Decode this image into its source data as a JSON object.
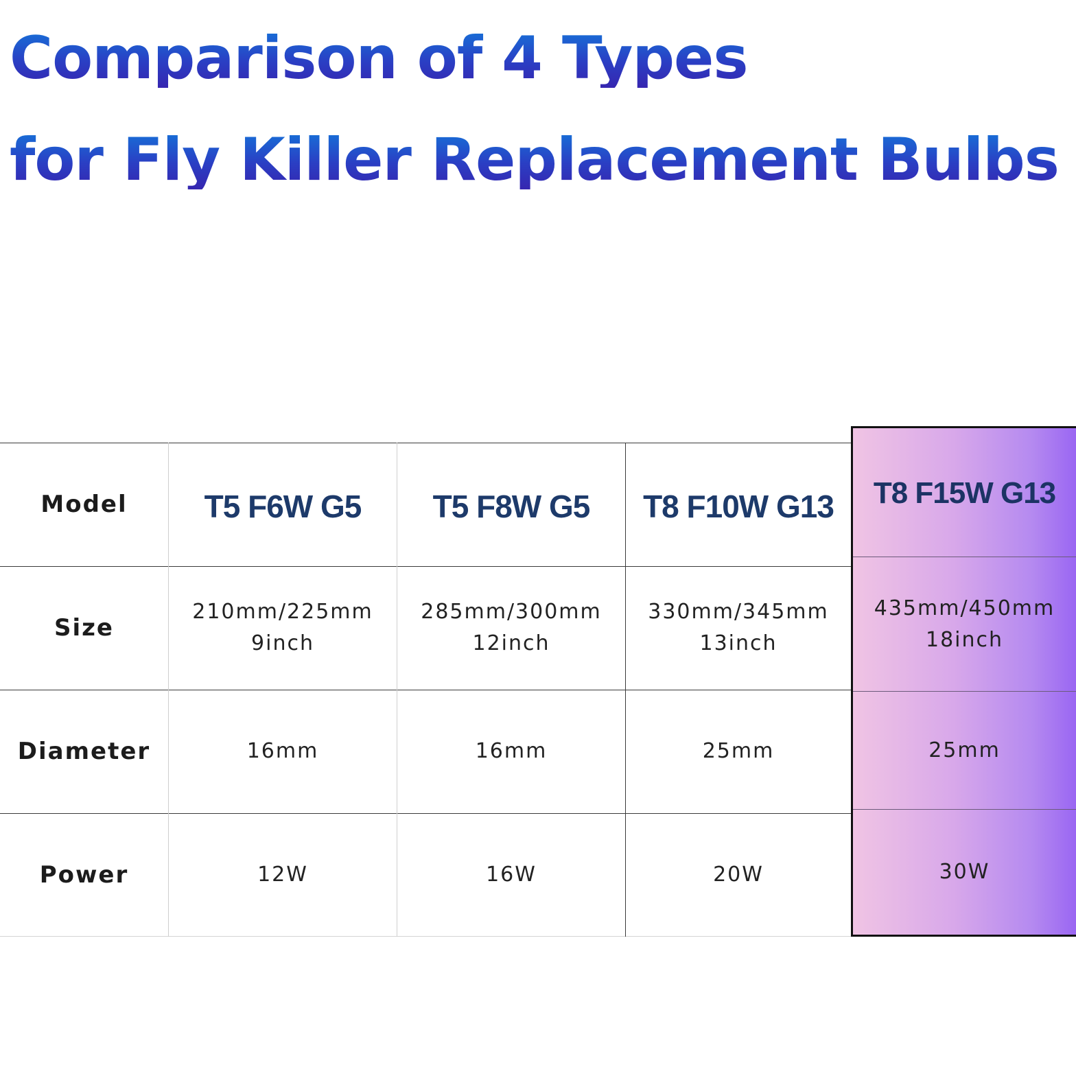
{
  "title": {
    "line1": "Comparison of 4 Types",
    "line2": "for Fly Killer Replacement Bulbs"
  },
  "table": {
    "row_labels": [
      "Model",
      "Size",
      "Diameter",
      "Power"
    ],
    "columns": [
      {
        "model": "T5 F6W G5",
        "size_mm": "210mm/225mm",
        "size_inch": "9inch",
        "diameter": "16mm",
        "power": "12W"
      },
      {
        "model": "T5 F8W G5",
        "size_mm": "285mm/300mm",
        "size_inch": "12inch",
        "diameter": "16mm",
        "power": "16W"
      },
      {
        "model": "T8 F10W G13",
        "size_mm": "330mm/345mm",
        "size_inch": "13inch",
        "diameter": "25mm",
        "power": "20W"
      },
      {
        "model": "T8 F15W G13",
        "size_mm": "435mm/450mm",
        "size_inch": "18inch",
        "diameter": "25mm",
        "power": "30W",
        "highlighted": true
      }
    ]
  },
  "colors": {
    "title_gradient_top": "#1672d8",
    "title_gradient_bottom": "#3626b0",
    "highlight_gradient_start": "#f0c4e4",
    "highlight_gradient_end": "#9a66f2"
  }
}
